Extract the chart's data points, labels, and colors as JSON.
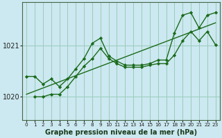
{
  "xlabel": "Graphe pression niveau de la mer (hPa)",
  "background_color": "#cce8f0",
  "grid_color": "#99ccbb",
  "line_color": "#1a6b1a",
  "x_ticks": [
    0,
    1,
    2,
    3,
    4,
    5,
    6,
    7,
    8,
    9,
    10,
    11,
    12,
    13,
    14,
    15,
    16,
    17,
    18,
    19,
    20,
    21,
    22,
    23
  ],
  "ylim": [
    1019.55,
    1021.85
  ],
  "yticks": [
    1020,
    1021
  ],
  "line_diagonal": {
    "x": [
      0,
      23
    ],
    "y": [
      1020.05,
      1021.45
    ]
  },
  "line_upper": {
    "x": [
      0,
      1,
      2,
      3,
      4,
      5,
      6,
      7,
      8,
      9,
      10,
      11,
      12,
      13,
      14,
      15,
      16,
      17,
      18,
      19,
      20,
      21,
      22,
      23
    ],
    "y": [
      1020.4,
      1020.4,
      1020.25,
      1020.35,
      1020.2,
      1020.35,
      1020.55,
      1020.75,
      1021.05,
      1021.15,
      1020.8,
      1020.7,
      1020.62,
      1020.62,
      1020.62,
      1020.65,
      1020.72,
      1020.72,
      1021.25,
      1021.6,
      1021.65,
      1021.35,
      1021.6,
      1021.65
    ]
  },
  "line_lower": {
    "x": [
      1,
      2,
      3,
      4,
      5,
      6,
      7,
      8,
      9,
      10,
      11,
      12,
      13,
      14,
      15,
      16,
      17,
      18,
      19,
      20,
      21,
      22,
      23
    ],
    "y": [
      1020.0,
      1020.0,
      1020.05,
      1020.05,
      1020.2,
      1020.4,
      1020.6,
      1020.75,
      1020.95,
      1020.75,
      1020.65,
      1020.58,
      1020.58,
      1020.58,
      1020.62,
      1020.65,
      1020.65,
      1020.82,
      1021.1,
      1021.28,
      1021.1,
      1021.28,
      1021.02
    ]
  }
}
